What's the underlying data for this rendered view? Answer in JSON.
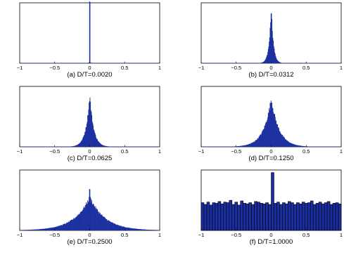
{
  "figure": {
    "panels": [
      {
        "caption": "(a) D/T=0.0020"
      },
      {
        "caption": "(b) D/T=0.0312"
      },
      {
        "caption": "(c) D/T=0.0625"
      },
      {
        "caption": "(d) D/T=0.1250"
      },
      {
        "caption": "(e) D/T=0.2500"
      },
      {
        "caption": "(f) D/T=1.0000"
      }
    ]
  },
  "chart_data": [
    {
      "type": "bar",
      "title": "(a) D/T=0.0020",
      "xlabel": "",
      "ylabel": "",
      "xlim": [
        -1,
        1
      ],
      "xticks": [
        "−1",
        "−0.5",
        "0",
        "0.5",
        "1"
      ],
      "grid": false,
      "color": "#1a2ea0",
      "shape": "narrow-peak",
      "width": 0.004,
      "peak": 1.0,
      "peak_x": 0
    },
    {
      "type": "bar",
      "title": "(b) D/T=0.0312",
      "xlabel": "",
      "ylabel": "",
      "xlim": [
        -1,
        1
      ],
      "xticks": [
        "−1",
        "−0.5",
        "0",
        "0.5",
        "1"
      ],
      "grid": false,
      "color": "#1a2ea0",
      "shape": "laplace",
      "width": 0.03,
      "peak": 1.0,
      "peak_x": 0
    },
    {
      "type": "bar",
      "title": "(c) D/T=0.0625",
      "xlabel": "",
      "ylabel": "",
      "xlim": [
        -1,
        1
      ],
      "xticks": [
        "−1",
        "−0.5",
        "0",
        "0.5",
        "1"
      ],
      "grid": false,
      "color": "#1a2ea0",
      "shape": "laplace",
      "width": 0.055,
      "peak": 0.88,
      "peak_x": 0
    },
    {
      "type": "bar",
      "title": "(d) D/T=0.1250",
      "xlabel": "",
      "ylabel": "",
      "xlim": [
        -1,
        1
      ],
      "xticks": [
        "−1",
        "−0.5",
        "0",
        "0.5",
        "1"
      ],
      "grid": false,
      "color": "#1a2ea0",
      "shape": "laplace",
      "width": 0.11,
      "peak": 0.82,
      "peak_x": 0
    },
    {
      "type": "bar",
      "title": "(e) D/T=0.2500",
      "xlabel": "",
      "ylabel": "",
      "xlim": [
        -1,
        1
      ],
      "xticks": [
        "−1",
        "−0.5",
        "0",
        "0.5",
        "1"
      ],
      "grid": false,
      "color": "#1a2ea0",
      "shape": "laplace",
      "width": 0.22,
      "peak": 0.56,
      "peak_x": 0,
      "spike": {
        "x": 0,
        "height": 0.7
      }
    },
    {
      "type": "bar",
      "title": "(f) D/T=1.0000",
      "xlabel": "",
      "ylabel": "",
      "xlim": [
        -1,
        1
      ],
      "xticks": [
        "−1",
        "−0.5",
        "0",
        "0.5",
        "1"
      ],
      "grid": false,
      "color": "#1a2ea0",
      "shape": "uniform",
      "bins": 50,
      "values": [
        0.47,
        0.44,
        0.48,
        0.43,
        0.47,
        0.46,
        0.49,
        0.45,
        0.48,
        0.47,
        0.51,
        0.44,
        0.48,
        0.43,
        0.5,
        0.46,
        0.45,
        0.47,
        0.44,
        0.49,
        0.48,
        0.46,
        0.45,
        0.47,
        0.44,
        0.98,
        0.46,
        0.48,
        0.44,
        0.47,
        0.45,
        0.49,
        0.47,
        0.44,
        0.47,
        0.45,
        0.48,
        0.46,
        0.47,
        0.5,
        0.44,
        0.46,
        0.48,
        0.45,
        0.47,
        0.49,
        0.44,
        0.46,
        0.47,
        0.45
      ]
    }
  ]
}
